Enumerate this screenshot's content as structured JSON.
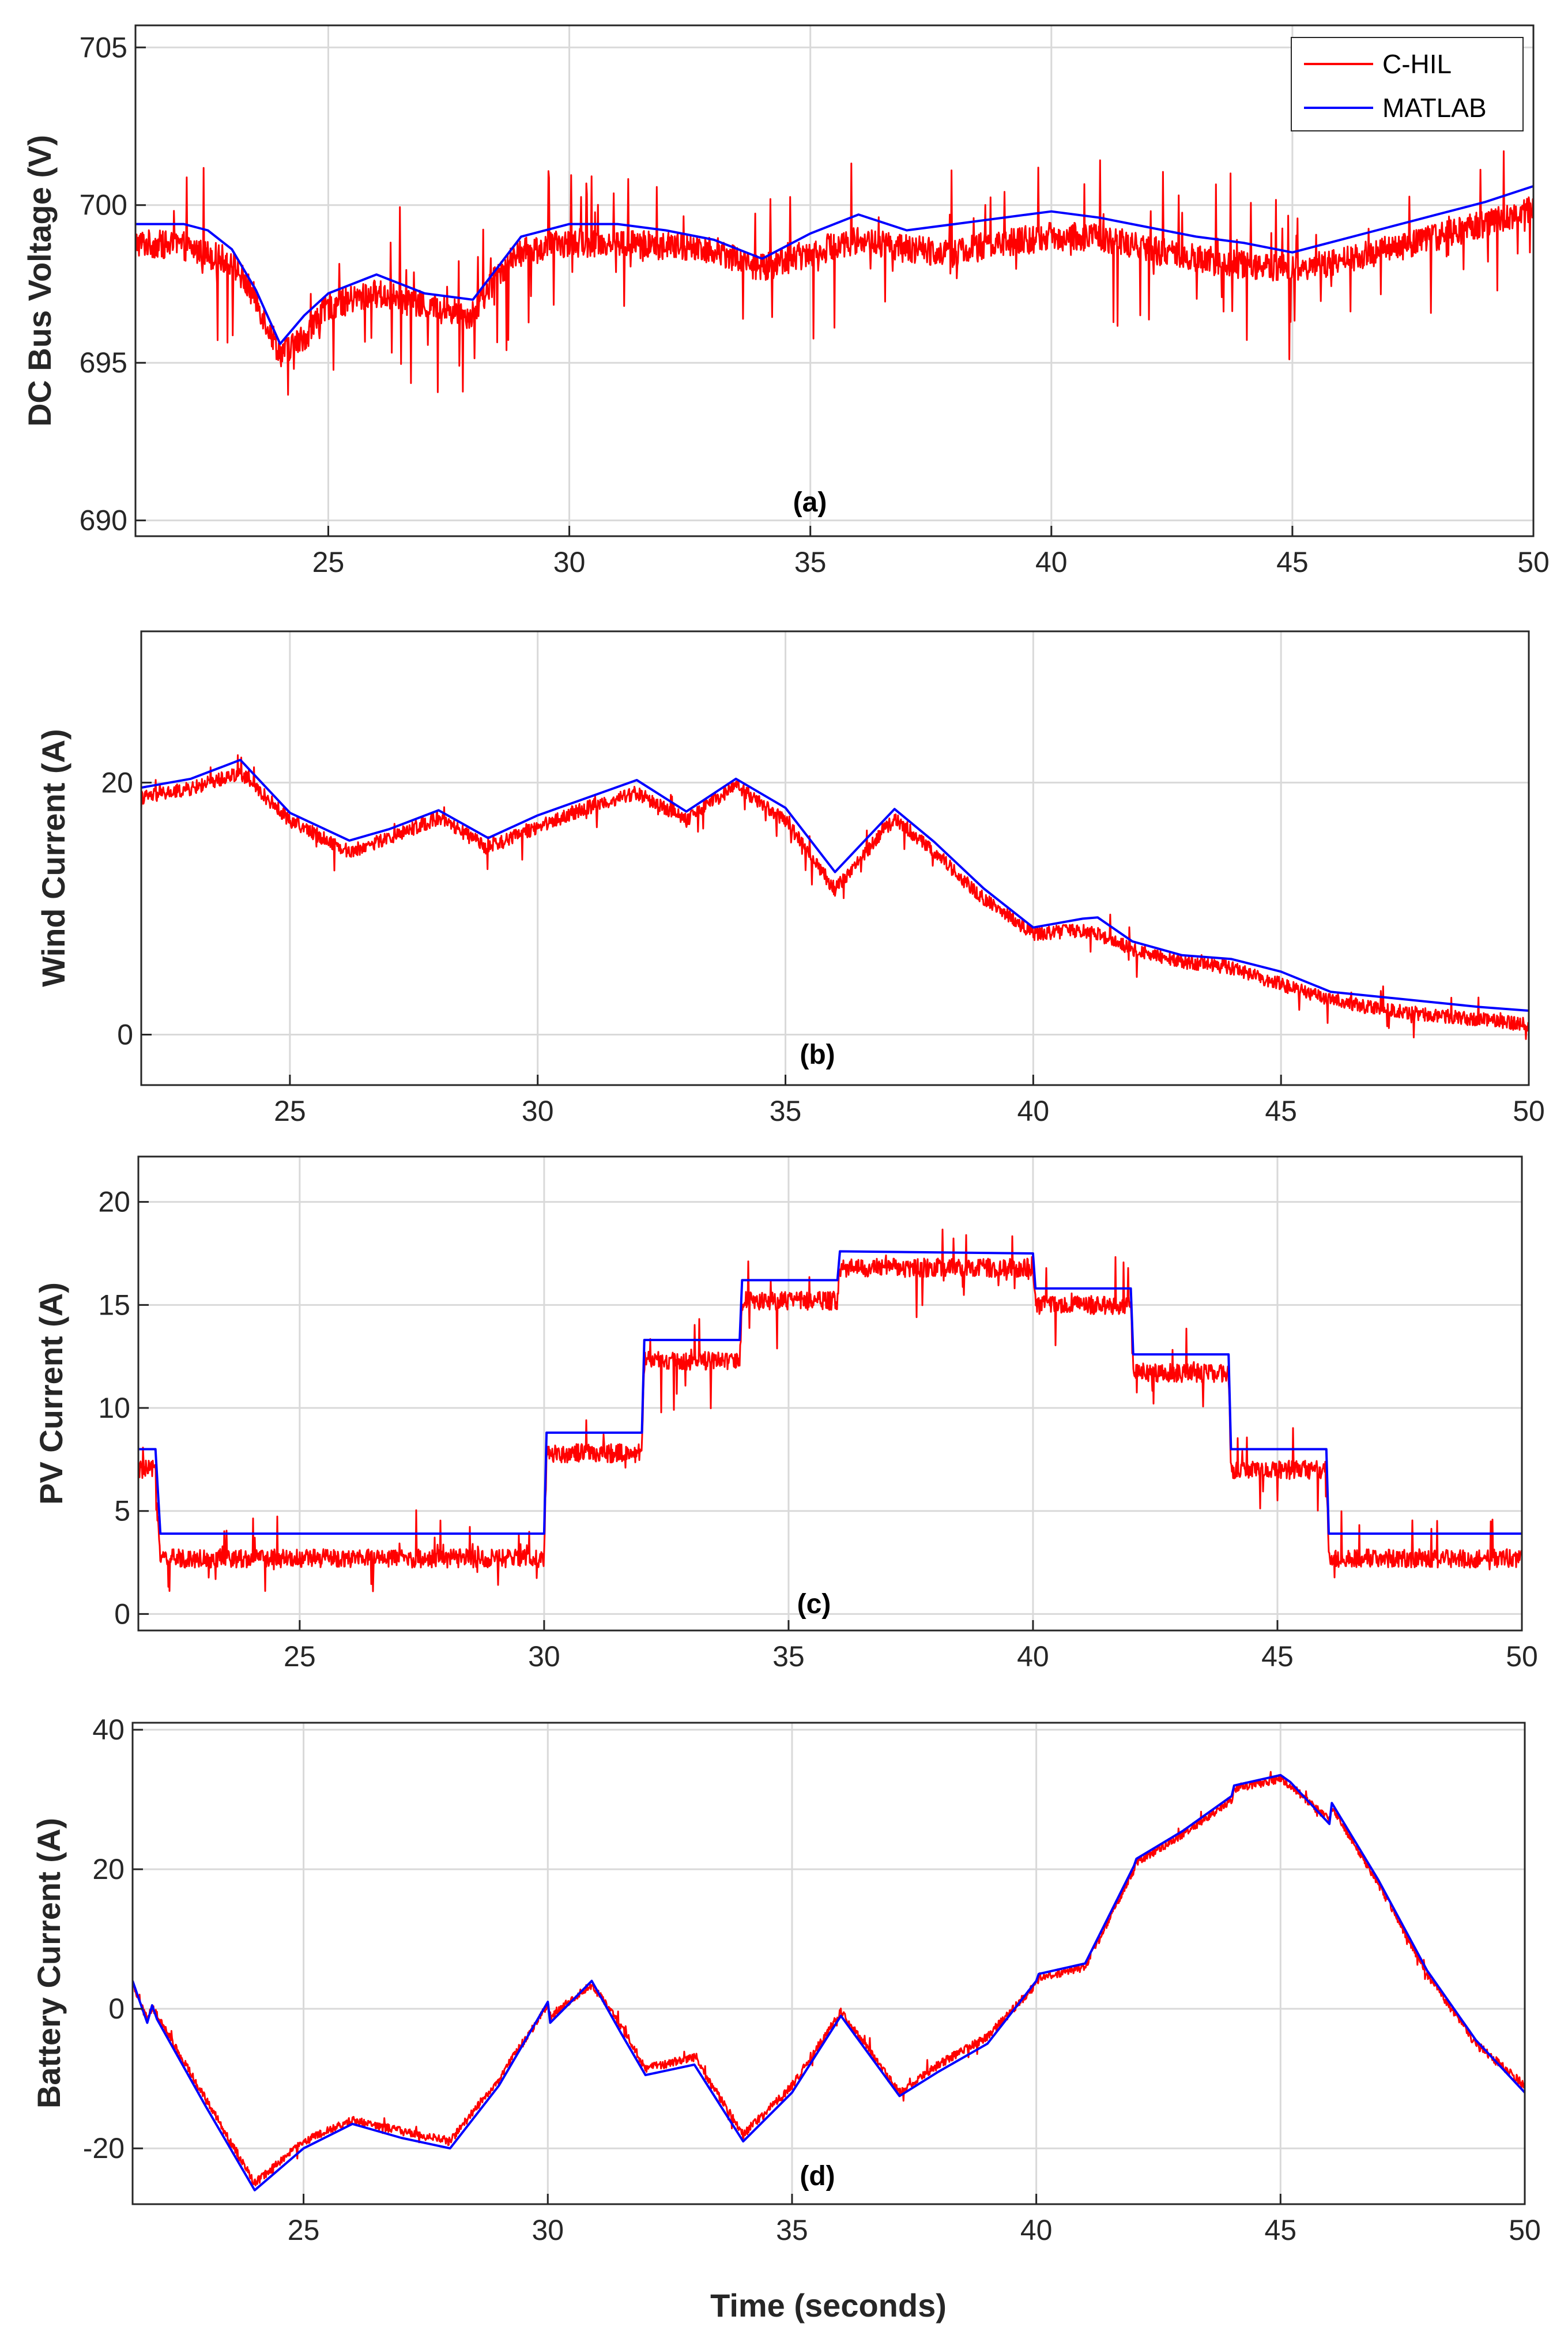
{
  "figure": {
    "shared_xlabel": "Time (seconds)",
    "legend": [
      {
        "label": "C-HIL",
        "color": "#ff0000"
      },
      {
        "label": "MATLAB",
        "color": "#0000ff"
      }
    ]
  },
  "chart_data": [
    {
      "type": "line",
      "panel": "(a)",
      "ylabel": "DC Bus Voltage (V)",
      "xlim": [
        21,
        50
      ],
      "ylim": [
        689.5,
        705.7
      ],
      "xticks": [
        25,
        30,
        35,
        40,
        45,
        50
      ],
      "yticks": [
        690,
        695,
        700,
        705
      ],
      "grid": true,
      "noise": {
        "amp": 0.45,
        "spike_prob": 0.06,
        "spike_amp": 2.6
      },
      "series": [
        {
          "name": "C-HIL",
          "color": "#ff0000",
          "x": [
            21,
            22,
            23,
            23.5,
            24,
            24.5,
            25,
            26,
            27,
            28,
            28.5,
            29,
            30,
            31,
            32,
            33,
            34,
            35,
            36,
            37,
            38,
            39,
            40,
            41,
            42,
            43,
            44,
            45,
            46,
            47,
            48,
            49,
            50
          ],
          "y": [
            698.8,
            698.7,
            698.2,
            697.0,
            695.3,
            695.8,
            696.8,
            697.2,
            696.8,
            696.5,
            697.8,
            698.5,
            698.8,
            698.8,
            698.7,
            698.6,
            698.0,
            698.5,
            698.9,
            698.6,
            698.5,
            698.8,
            699.0,
            699.0,
            698.6,
            698.3,
            698.1,
            698.0,
            698.2,
            698.6,
            699.0,
            699.4,
            699.9
          ]
        },
        {
          "name": "MATLAB",
          "color": "#0000ff",
          "x": [
            21,
            22,
            22.5,
            23,
            23.5,
            24,
            24.5,
            25,
            26,
            27,
            28,
            28.5,
            29,
            30,
            31,
            32,
            33,
            34,
            35,
            36,
            37,
            38,
            39,
            40,
            41,
            42,
            43,
            44,
            45,
            46,
            47,
            48,
            49,
            50
          ],
          "y": [
            699.4,
            699.4,
            699.2,
            698.6,
            697.3,
            695.6,
            696.5,
            697.2,
            697.8,
            697.2,
            697.0,
            698.0,
            699.0,
            699.4,
            699.4,
            699.2,
            698.9,
            698.3,
            699.1,
            699.7,
            699.2,
            699.4,
            699.6,
            699.8,
            699.6,
            699.3,
            699.0,
            698.8,
            698.5,
            698.9,
            699.3,
            699.7,
            700.1,
            700.6
          ]
        }
      ]
    },
    {
      "type": "line",
      "panel": "(b)",
      "ylabel": "Wind Current  (A)",
      "xlim": [
        22,
        50
      ],
      "ylim": [
        -4,
        32
      ],
      "xticks": [
        25,
        30,
        35,
        40,
        45,
        50
      ],
      "yticks": [
        0,
        20
      ],
      "grid": true,
      "noise": {
        "amp": 0.55,
        "spike_prob": 0.04,
        "spike_amp": 1.8
      },
      "series": [
        {
          "name": "C-HIL",
          "color": "#ff0000",
          "x": [
            22,
            23,
            24,
            25,
            26.2,
            27,
            28,
            29,
            30,
            31,
            32,
            33,
            34,
            35,
            36,
            37.2,
            38,
            39,
            40,
            41,
            41.3,
            42,
            43,
            44,
            45,
            46,
            47,
            48,
            49,
            50
          ],
          "y": [
            18.8,
            19.5,
            20.8,
            17.0,
            14.5,
            15.6,
            17.2,
            14.8,
            16.5,
            18.0,
            19.2,
            17.0,
            19.8,
            17.0,
            11.5,
            17.2,
            14.5,
            10.8,
            8.0,
            8.3,
            8.0,
            6.8,
            5.8,
            5.3,
            4.0,
            2.8,
            2.0,
            1.6,
            1.2,
            0.8
          ]
        },
        {
          "name": "MATLAB",
          "color": "#0000ff",
          "x": [
            22,
            23,
            24,
            25,
            26.2,
            27,
            28,
            29,
            30,
            31,
            32,
            33,
            34,
            35,
            36,
            37.2,
            38,
            39,
            40,
            41,
            41.3,
            42,
            43,
            44,
            45,
            46,
            47,
            48,
            49,
            50
          ],
          "y": [
            19.6,
            20.3,
            21.8,
            17.6,
            15.4,
            16.3,
            17.8,
            15.6,
            17.4,
            18.8,
            20.2,
            17.7,
            20.3,
            18.0,
            12.9,
            17.9,
            15.3,
            11.6,
            8.5,
            9.2,
            9.3,
            7.4,
            6.3,
            6.0,
            5.0,
            3.4,
            3.0,
            2.6,
            2.2,
            1.9
          ]
        }
      ]
    },
    {
      "type": "line",
      "panel": "(c)",
      "ylabel": "PV Current (A)",
      "xlim": [
        21.7,
        50
      ],
      "ylim": [
        -0.8,
        22.2
      ],
      "xticks": [
        25,
        30,
        35,
        40,
        45,
        50
      ],
      "yticks": [
        0,
        5,
        10,
        15,
        20
      ],
      "grid": true,
      "noise": {
        "amp": 0.45,
        "spike_prob": 0.05,
        "spike_amp": 2.2
      },
      "series": [
        {
          "name": "C-HIL",
          "color": "#ff0000",
          "x": [
            21.7,
            22.05,
            22.15,
            30.0,
            30.05,
            32.0,
            32.05,
            34.0,
            34.05,
            36.0,
            36.05,
            40.0,
            40.05,
            42.0,
            42.05,
            44.0,
            44.05,
            46.0,
            46.05,
            50.0
          ],
          "y": [
            7.0,
            7.0,
            2.7,
            2.7,
            7.8,
            7.8,
            12.3,
            12.3,
            15.2,
            15.2,
            16.8,
            16.8,
            15.0,
            15.0,
            11.7,
            11.7,
            7.0,
            7.0,
            2.7,
            2.7
          ]
        },
        {
          "name": "MATLAB",
          "color": "#0000ff",
          "x": [
            21.7,
            22.05,
            22.15,
            30.0,
            30.05,
            32.0,
            32.05,
            34.0,
            34.05,
            36.0,
            36.05,
            40.0,
            40.05,
            42.0,
            42.05,
            44.0,
            44.05,
            46.0,
            46.05,
            50.0
          ],
          "y": [
            8.0,
            8.0,
            3.9,
            3.9,
            8.8,
            8.8,
            13.3,
            13.3,
            16.2,
            16.2,
            17.6,
            17.5,
            15.8,
            15.8,
            12.6,
            12.6,
            8.0,
            8.0,
            3.9,
            3.9
          ]
        }
      ]
    },
    {
      "type": "line",
      "panel": "(d)",
      "ylabel": "Battery Current (A)",
      "xlim": [
        21.5,
        50
      ],
      "ylim": [
        -28,
        41
      ],
      "xticks": [
        25,
        30,
        35,
        40,
        45,
        50
      ],
      "yticks": [
        -20,
        0,
        20,
        40
      ],
      "grid": true,
      "noise": {
        "amp": 0.6,
        "spike_prob": 0.03,
        "spike_amp": 1.6
      },
      "series": [
        {
          "name": "C-HIL",
          "color": "#ff0000",
          "x": [
            21.5,
            21.8,
            21.9,
            22.0,
            23.0,
            24.0,
            25.0,
            26.0,
            27.0,
            28.0,
            29.0,
            30.0,
            30.05,
            30.9,
            31.5,
            32.0,
            33.0,
            34.0,
            35.0,
            36.0,
            37.2,
            38.0,
            39.0,
            40.0,
            40.05,
            41.0,
            42.0,
            42.05,
            43.0,
            44.0,
            44.05,
            45.0,
            45.2,
            46.0,
            46.05,
            47.0,
            48.0,
            49.0,
            50.0
          ],
          "y": [
            3.5,
            -1.5,
            0.2,
            -1.0,
            -13.0,
            -25.0,
            -19.0,
            -16.0,
            -17.5,
            -19.0,
            -10.0,
            0.5,
            -1.0,
            3.5,
            -2.5,
            -8.5,
            -7.0,
            -18.0,
            -11.0,
            -0.5,
            -12.0,
            -8.0,
            -4.0,
            3.5,
            4.5,
            6.0,
            20.0,
            21.0,
            25.0,
            30.0,
            31.5,
            33.0,
            32.0,
            27.0,
            29.0,
            18.0,
            5.0,
            -5.0,
            -11.0
          ]
        },
        {
          "name": "MATLAB",
          "color": "#0000ff",
          "x": [
            21.5,
            21.8,
            21.9,
            22.0,
            23.0,
            24.0,
            25.0,
            26.0,
            27.0,
            28.0,
            29.0,
            30.0,
            30.05,
            30.9,
            31.5,
            32.0,
            33.0,
            34.0,
            35.0,
            36.0,
            37.2,
            38.0,
            39.0,
            40.0,
            40.05,
            41.0,
            42.0,
            42.05,
            43.0,
            44.0,
            44.05,
            45.0,
            45.2,
            46.0,
            46.05,
            47.0,
            48.0,
            49.0,
            50.0
          ],
          "y": [
            4.0,
            -2.0,
            0.5,
            -1.5,
            -14.0,
            -26.0,
            -20.0,
            -16.5,
            -18.5,
            -20.0,
            -11.0,
            1.0,
            -2.0,
            4.0,
            -3.5,
            -9.5,
            -8.0,
            -19.0,
            -12.0,
            -1.0,
            -12.5,
            -9.0,
            -5.0,
            4.0,
            5.0,
            6.5,
            20.5,
            21.5,
            25.5,
            30.5,
            32.0,
            33.5,
            32.5,
            26.5,
            29.5,
            18.5,
            5.5,
            -4.5,
            -12.0
          ]
        }
      ]
    }
  ]
}
